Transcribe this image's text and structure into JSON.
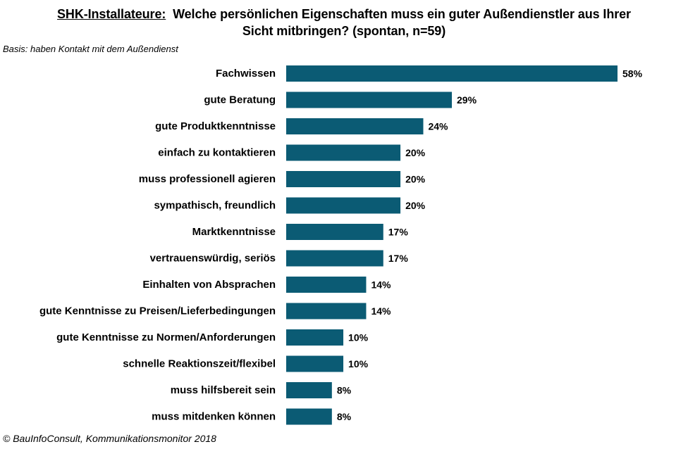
{
  "title": {
    "prefix": "SHK-Installateure:",
    "line1": "Welche persönlichen Eigenschaften muss ein guter Außendienstler aus Ihrer",
    "line2": "Sicht mitbringen?  (spontan, n=59)"
  },
  "basis_note": "Basis: haben Kontakt mit dem Außendienst",
  "source_note": "© BauInfoConsult, Kommunikationsmonitor 2018",
  "colors": {
    "bar": "#0b5b74"
  },
  "chart_data": {
    "type": "bar",
    "orientation": "horizontal",
    "categories": [
      "Fachwissen",
      "gute Beratung",
      "gute Produktkenntnisse",
      "einfach zu kontaktieren",
      "muss professionell agieren",
      "sympathisch, freundlich",
      "Marktkenntnisse",
      "vertrauenswürdig, seriös",
      "Einhalten von Absprachen",
      "gute Kenntnisse zu Preisen/Lieferbedingungen",
      "gute Kenntnisse zu Normen/Anforderungen",
      "schnelle Reaktionszeit/flexibel",
      "muss hilfsbereit sein",
      "muss mitdenken können"
    ],
    "values": [
      58,
      29,
      24,
      20,
      20,
      20,
      17,
      17,
      14,
      14,
      10,
      10,
      8,
      8
    ],
    "value_labels": [
      "58%",
      "29%",
      "24%",
      "20%",
      "20%",
      "20%",
      "17%",
      "17%",
      "14%",
      "14%",
      "10%",
      "10%",
      "8%",
      "8%"
    ],
    "unit": "%",
    "grid": false,
    "legend": "none"
  }
}
